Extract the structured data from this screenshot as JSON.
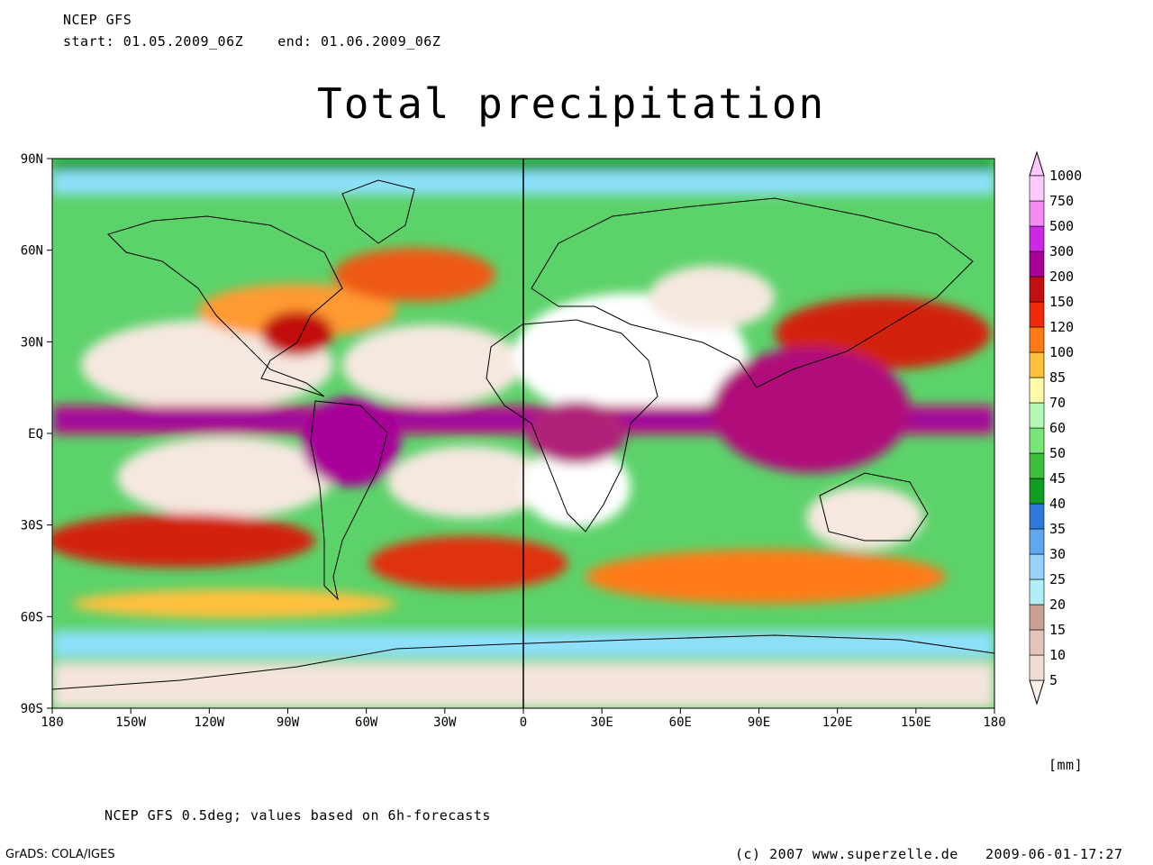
{
  "header": {
    "model": "NCEP GFS",
    "start_label": "start:",
    "start": "01.05.2009_06Z",
    "end_label": "end:",
    "end": "01.06.2009_06Z"
  },
  "title": "Total precipitation",
  "map": {
    "lat_labels": [
      "90N",
      "60N",
      "30N",
      "EQ",
      "30S",
      "60S",
      "90S"
    ],
    "lon_labels": [
      "180",
      "150W",
      "120W",
      "90W",
      "60W",
      "30W",
      "0",
      "30E",
      "60E",
      "90E",
      "120E",
      "150E",
      "180"
    ]
  },
  "colorbar": {
    "levels": [
      "5",
      "10",
      "15",
      "20",
      "25",
      "30",
      "35",
      "40",
      "45",
      "50",
      "60",
      "70",
      "85",
      "100",
      "120",
      "150",
      "200",
      "300",
      "500",
      "750",
      "1000"
    ],
    "colors": [
      "#fbeee6",
      "#f1dcd3",
      "#e4c4b8",
      "#c9a091",
      "#b0eef8",
      "#96d2fa",
      "#5fa8f0",
      "#2f78d8",
      "#119c23",
      "#3cbe3c",
      "#78e678",
      "#b4fab4",
      "#fffaa8",
      "#ffc03c",
      "#ff7a14",
      "#ee2a0a",
      "#c20f0f",
      "#a80098",
      "#cd28e6",
      "#f58cf5",
      "#ffc8ff"
    ],
    "unit": "[mm]"
  },
  "footer": {
    "description": "NCEP GFS 0.5deg; values based on 6h-forecasts",
    "software": "GrADS: COLA/IGES",
    "copyright": "(c) 2007 www.superzelle.de",
    "timestamp": "2009-06-01-17:27"
  }
}
